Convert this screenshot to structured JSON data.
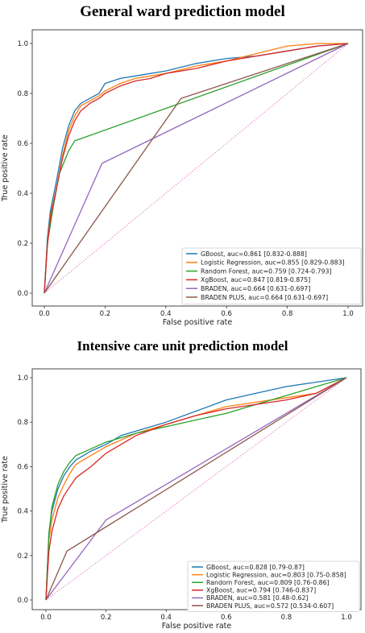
{
  "chart_data": [
    {
      "type": "line",
      "title": "General ward prediction model",
      "xlabel": "False positive rate",
      "ylabel": "True positive rate",
      "xlim": [
        0,
        1
      ],
      "ylim": [
        0,
        1
      ],
      "xticks": [
        "0.0",
        "0.2",
        "0.4",
        "0.6",
        "0.8",
        "1.0"
      ],
      "yticks": [
        "0.0",
        "0.2",
        "0.4",
        "0.6",
        "0.8",
        "1.0"
      ],
      "legend_position": "lower-right",
      "series": [
        {
          "name": "GBoost, auc=0.861 [0.832-0.888]",
          "color": "#1f77b4",
          "x": [
            0,
            0.01,
            0.02,
            0.04,
            0.06,
            0.08,
            0.1,
            0.12,
            0.15,
            0.18,
            0.2,
            0.25,
            0.3,
            0.35,
            0.4,
            0.5,
            0.6,
            0.7,
            0.8,
            0.9,
            1.0
          ],
          "y": [
            0,
            0.22,
            0.33,
            0.45,
            0.58,
            0.67,
            0.73,
            0.76,
            0.78,
            0.8,
            0.84,
            0.86,
            0.87,
            0.88,
            0.89,
            0.92,
            0.94,
            0.95,
            0.97,
            0.99,
            1.0
          ]
        },
        {
          "name": "Logistic Regression, auc=0.855 [0.829-0.883]",
          "color": "#ff7f0e",
          "x": [
            0,
            0.01,
            0.02,
            0.04,
            0.06,
            0.08,
            0.1,
            0.12,
            0.15,
            0.18,
            0.2,
            0.25,
            0.3,
            0.35,
            0.4,
            0.5,
            0.6,
            0.7,
            0.8,
            0.9,
            1.0
          ],
          "y": [
            0,
            0.2,
            0.31,
            0.42,
            0.55,
            0.65,
            0.71,
            0.75,
            0.77,
            0.79,
            0.81,
            0.84,
            0.86,
            0.87,
            0.88,
            0.91,
            0.93,
            0.96,
            0.99,
            1.0,
            1.0
          ]
        },
        {
          "name": "Random Forest, auc=0.759 [0.724-0.793]",
          "color": "#2ca02c",
          "x": [
            0,
            0.01,
            0.03,
            0.05,
            0.08,
            0.1,
            1.0
          ],
          "y": [
            0,
            0.2,
            0.35,
            0.48,
            0.57,
            0.61,
            1.0
          ]
        },
        {
          "name": "XgBoost, auc=0.847 [0.819-0.875]",
          "color": "#d62728",
          "x": [
            0,
            0.01,
            0.02,
            0.04,
            0.06,
            0.08,
            0.1,
            0.12,
            0.15,
            0.18,
            0.2,
            0.25,
            0.3,
            0.35,
            0.4,
            0.5,
            0.6,
            0.7,
            0.8,
            0.9,
            1.0
          ],
          "y": [
            0,
            0.19,
            0.3,
            0.42,
            0.54,
            0.63,
            0.69,
            0.73,
            0.76,
            0.78,
            0.8,
            0.83,
            0.85,
            0.86,
            0.88,
            0.9,
            0.93,
            0.95,
            0.97,
            0.99,
            1.0
          ]
        },
        {
          "name": "BRADEN, auc=0.664 [0.631-0.697]",
          "color": "#9467bd",
          "x": [
            0,
            0.19,
            1.0
          ],
          "y": [
            0,
            0.52,
            1.0
          ]
        },
        {
          "name": "BRADEN PLUS, auc=0.664 [0.631-0.697]",
          "color": "#8c564b",
          "x": [
            0,
            0.45,
            1.0
          ],
          "y": [
            0,
            0.78,
            1.0
          ]
        }
      ]
    },
    {
      "type": "line",
      "title": "Intensive care unit prediction model",
      "xlabel": "False positive rate",
      "ylabel": "True positive rate",
      "xlim": [
        0,
        1
      ],
      "ylim": [
        0,
        1
      ],
      "xticks": [
        "0.0",
        "0.2",
        "0.4",
        "0.6",
        "0.8",
        "1.0"
      ],
      "yticks": [
        "0.0",
        "0.2",
        "0.4",
        "0.6",
        "0.8",
        "1.0"
      ],
      "legend_position": "lower-right",
      "series": [
        {
          "name": "GBoost, auc=0.828 [0.79-0.87]",
          "color": "#1f77b4",
          "x": [
            0,
            0.01,
            0.02,
            0.04,
            0.06,
            0.08,
            0.1,
            0.15,
            0.2,
            0.25,
            0.3,
            0.4,
            0.5,
            0.6,
            0.7,
            0.8,
            0.9,
            1.0
          ],
          "y": [
            0,
            0.3,
            0.4,
            0.5,
            0.56,
            0.6,
            0.63,
            0.67,
            0.7,
            0.74,
            0.76,
            0.8,
            0.85,
            0.9,
            0.93,
            0.96,
            0.98,
            1.0
          ]
        },
        {
          "name": "Logistic Regression, auc=0.803 [0.75-0.858]",
          "color": "#ff7f0e",
          "x": [
            0,
            0.01,
            0.02,
            0.04,
            0.06,
            0.08,
            0.1,
            0.15,
            0.2,
            0.25,
            0.3,
            0.4,
            0.5,
            0.6,
            0.7,
            0.8,
            0.9,
            1.0
          ],
          "y": [
            0,
            0.27,
            0.36,
            0.46,
            0.52,
            0.57,
            0.61,
            0.65,
            0.69,
            0.72,
            0.75,
            0.79,
            0.83,
            0.87,
            0.89,
            0.91,
            0.93,
            1.0
          ]
        },
        {
          "name": "Random Forest, auc=0.809 [0.76-0.86]",
          "color": "#2ca02c",
          "x": [
            0,
            0.01,
            0.02,
            0.04,
            0.06,
            0.08,
            0.1,
            0.15,
            0.2,
            0.25,
            0.3,
            0.4,
            0.5,
            0.6,
            0.7,
            0.8,
            0.9,
            1.0
          ],
          "y": [
            0,
            0.3,
            0.42,
            0.52,
            0.58,
            0.62,
            0.65,
            0.68,
            0.71,
            0.73,
            0.75,
            0.78,
            0.81,
            0.84,
            0.88,
            0.92,
            0.96,
            1.0
          ]
        },
        {
          "name": "XgBoost, auc=0.794 [0.746-0.837]",
          "color": "#d62728",
          "x": [
            0,
            0.01,
            0.02,
            0.04,
            0.06,
            0.08,
            0.1,
            0.15,
            0.2,
            0.25,
            0.3,
            0.4,
            0.5,
            0.6,
            0.7,
            0.8,
            0.9,
            1.0
          ],
          "y": [
            0,
            0.22,
            0.31,
            0.41,
            0.47,
            0.51,
            0.55,
            0.6,
            0.66,
            0.7,
            0.74,
            0.79,
            0.83,
            0.86,
            0.88,
            0.9,
            0.93,
            1.0
          ]
        },
        {
          "name": "BRADEN, auc=0.581 [0.48-0.62]",
          "color": "#9467bd",
          "x": [
            0,
            0.2,
            1.0
          ],
          "y": [
            0,
            0.36,
            1.0
          ]
        },
        {
          "name": "BRADEN PLUS, auc=0.572 [0.534-0.607]",
          "color": "#8c564b",
          "x": [
            0,
            0.07,
            1.0
          ],
          "y": [
            0,
            0.22,
            1.0
          ]
        }
      ]
    }
  ]
}
